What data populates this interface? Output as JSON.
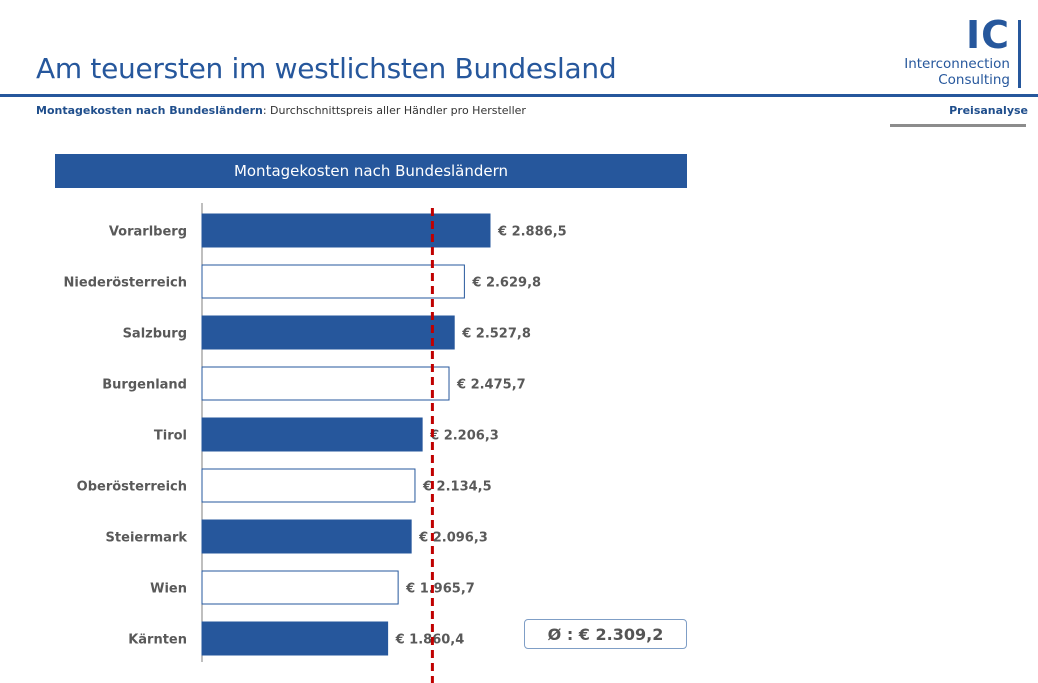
{
  "header": {
    "title": "Am teuersten im westlichsten Bundesland",
    "subtitle_lead": "Montagekosten nach Bundesländern",
    "subtitle_rest": ": Durchschnittspreis aller Händler pro Hersteller",
    "section_tag": "Preisanalyse"
  },
  "logo": {
    "letters": "IC",
    "line1": "Interconnection",
    "line2": "Consulting"
  },
  "average": {
    "label": "Ø : € 2.309,2",
    "value": 2309.2
  },
  "colors": {
    "brand": "#26579c",
    "average_line": "#c00000",
    "label_gray": "#595959"
  },
  "chart_data": {
    "type": "bar",
    "orientation": "horizontal",
    "title": "Montagekosten nach Bundesländern",
    "categories": [
      "Vorarlberg",
      "Niederösterreich",
      "Salzburg",
      "Burgenland",
      "Tirol",
      "Oberösterreich",
      "Steiermark",
      "Wien",
      "Kärnten"
    ],
    "values": [
      2886.5,
      2629.8,
      2527.8,
      2475.7,
      2206.3,
      2134.5,
      2096.3,
      1965.7,
      1860.4
    ],
    "value_labels": [
      "€ 2.886,5",
      "€ 2.629,8",
      "€ 2.527,8",
      "€ 2.475,7",
      "€ 2.206,3",
      "€ 2.134,5",
      "€ 2.096,3",
      "€ 1.965,7",
      "€ 1.860,4"
    ],
    "fill_styles": [
      "filled",
      "outline",
      "filled",
      "outline",
      "filled",
      "outline",
      "filled",
      "outline",
      "filled"
    ],
    "reference_line": {
      "value": 2309.2,
      "style": "dashed"
    },
    "xlim": [
      0,
      2886.5
    ],
    "grid": false,
    "legend": "none"
  }
}
